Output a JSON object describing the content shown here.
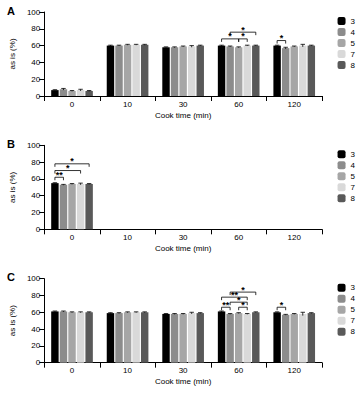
{
  "chart_data": [
    {
      "type": "bar",
      "title": "A",
      "xlabel": "Cook time (min)",
      "ylabel": "as is (%)",
      "categories": [
        "0",
        "10",
        "30",
        "60",
        "120"
      ],
      "series": [
        {
          "name": "3",
          "color": "#000000",
          "values": [
            7,
            60,
            58,
            60,
            60
          ],
          "errors": [
            0.5,
            0.5,
            0.5,
            0.5,
            0.5
          ]
        },
        {
          "name": "4",
          "color": "#8c8c8c",
          "values": [
            8,
            60,
            58,
            59,
            57
          ],
          "errors": [
            1,
            0.5,
            0.5,
            0.5,
            1
          ]
        },
        {
          "name": "5",
          "color": "#a6a6a6",
          "values": [
            6,
            61,
            59,
            58,
            59
          ],
          "errors": [
            0.5,
            0.5,
            0.5,
            0.5,
            0.5
          ]
        },
        {
          "name": "7",
          "color": "#d9d9d9",
          "values": [
            7,
            61,
            59,
            60,
            60
          ],
          "errors": [
            1,
            0.5,
            1,
            0.5,
            1.5
          ]
        },
        {
          "name": "8",
          "color": "#595959",
          "values": [
            6,
            61,
            60,
            60,
            60
          ],
          "errors": [
            0.5,
            0.5,
            0.5,
            0.5,
            0.5
          ]
        }
      ],
      "annotations": [
        {
          "category": "60",
          "from": "3",
          "to": "5",
          "y": 68,
          "text": "*"
        },
        {
          "category": "60",
          "from": "5",
          "to": "7",
          "y": 68,
          "text": "*"
        },
        {
          "category": "60",
          "from": "4",
          "to": "8",
          "y": 76,
          "text": "*"
        },
        {
          "category": "120",
          "from": "3",
          "to": "4",
          "y": 66,
          "text": "*"
        }
      ],
      "ylim": [
        0,
        100
      ],
      "yticks": [
        0,
        20,
        40,
        60,
        80,
        100
      ],
      "legend": "right"
    },
    {
      "type": "bar",
      "title": "B",
      "xlabel": "Cook time (min)",
      "ylabel": "as is (%)",
      "categories": [
        "0",
        "10",
        "30",
        "60",
        "120"
      ],
      "series": [
        {
          "name": "3",
          "color": "#000000",
          "values": [
            55,
            null,
            null,
            null,
            null
          ],
          "errors": [
            0.5,
            null,
            null,
            null,
            null
          ]
        },
        {
          "name": "4",
          "color": "#8c8c8c",
          "values": [
            53,
            null,
            null,
            null,
            null
          ],
          "errors": [
            0.5,
            null,
            null,
            null,
            null
          ]
        },
        {
          "name": "5",
          "color": "#a6a6a6",
          "values": [
            54,
            null,
            null,
            null,
            null
          ],
          "errors": [
            0.5,
            null,
            null,
            null,
            null
          ]
        },
        {
          "name": "7",
          "color": "#d9d9d9",
          "values": [
            54,
            null,
            null,
            null,
            null
          ],
          "errors": [
            1,
            null,
            null,
            null,
            null
          ]
        },
        {
          "name": "8",
          "color": "#595959",
          "values": [
            54,
            null,
            null,
            null,
            null
          ],
          "errors": [
            0.5,
            null,
            null,
            null,
            null
          ]
        }
      ],
      "annotations": [
        {
          "category": "0",
          "from": "3",
          "to": "4",
          "y": 62,
          "text": "**"
        },
        {
          "category": "0",
          "from": "3",
          "to": "7",
          "y": 70,
          "text": "*"
        },
        {
          "category": "0",
          "from": "3",
          "to": "8",
          "y": 78,
          "text": "*"
        }
      ],
      "ylim": [
        0,
        100
      ],
      "yticks": [
        0,
        20,
        40,
        60,
        80,
        100
      ],
      "legend": "right"
    },
    {
      "type": "bar",
      "title": "C",
      "xlabel": "Cook time (min)",
      "ylabel": "as is (%)",
      "categories": [
        "0",
        "10",
        "30",
        "60",
        "120"
      ],
      "series": [
        {
          "name": "3",
          "color": "#000000",
          "values": [
            61,
            59,
            58,
            61,
            60
          ],
          "errors": [
            0.5,
            0.5,
            0.5,
            0.5,
            0.5
          ]
        },
        {
          "name": "4",
          "color": "#8c8c8c",
          "values": [
            61,
            59,
            58,
            58,
            57
          ],
          "errors": [
            0.5,
            0.5,
            0.5,
            0.5,
            0.5
          ]
        },
        {
          "name": "5",
          "color": "#a6a6a6",
          "values": [
            60,
            60,
            58,
            59,
            58
          ],
          "errors": [
            0.5,
            0.5,
            0.5,
            0.5,
            0.5
          ]
        },
        {
          "name": "7",
          "color": "#d9d9d9",
          "values": [
            60,
            60,
            59,
            58,
            58
          ],
          "errors": [
            0.5,
            0.5,
            1,
            0.5,
            2
          ]
        },
        {
          "name": "8",
          "color": "#595959",
          "values": [
            60,
            60,
            59,
            60,
            59
          ],
          "errors": [
            0.5,
            0.5,
            0.5,
            0.5,
            0.5
          ]
        }
      ],
      "annotations": [
        {
          "category": "60",
          "from": "3",
          "to": "4",
          "y": 66,
          "text": "**"
        },
        {
          "category": "60",
          "from": "5",
          "to": "7",
          "y": 66,
          "text": "*"
        },
        {
          "category": "60",
          "from": "4",
          "to": "7",
          "y": 72,
          "text": "*"
        },
        {
          "category": "60",
          "from": "3",
          "to": "7",
          "y": 78,
          "text": "**"
        },
        {
          "category": "60",
          "from": "4",
          "to": "8",
          "y": 84,
          "text": "*"
        },
        {
          "category": "120",
          "from": "3",
          "to": "4",
          "y": 66,
          "text": "*"
        }
      ],
      "ylim": [
        0,
        100
      ],
      "yticks": [
        0,
        20,
        40,
        60,
        80,
        100
      ],
      "legend": "right"
    }
  ]
}
